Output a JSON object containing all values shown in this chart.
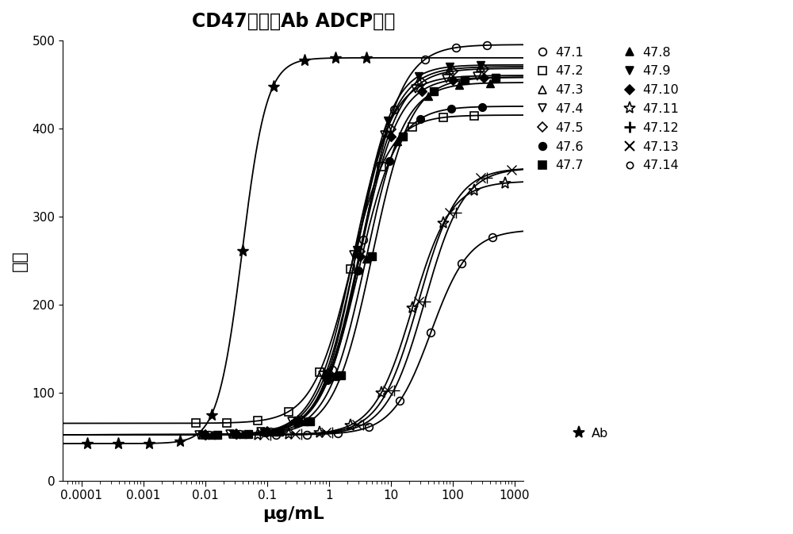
{
  "title": "CD47可活化Ab ADCP测定",
  "xlabel": "μg/mL",
  "ylabel": "发光",
  "ylim": [
    0,
    500
  ],
  "yticks": [
    0,
    100,
    200,
    300,
    400,
    500
  ],
  "xticks": [
    0.0001,
    0.001,
    0.01,
    0.1,
    1,
    10,
    100,
    1000
  ],
  "xtick_labels": [
    "0.0001",
    "0.001",
    "0.01",
    "0.1",
    "1",
    "10",
    "100",
    "1000"
  ],
  "series": [
    {
      "label": "47.1",
      "marker": "o",
      "fillstyle": "none",
      "ec50_log": 0.55,
      "bottom": 52,
      "top": 495,
      "hill": 1.4
    },
    {
      "label": "47.2",
      "marker": "s",
      "fillstyle": "none",
      "ec50_log": 0.35,
      "bottom": 65,
      "top": 415,
      "hill": 1.4
    },
    {
      "label": "47.3",
      "marker": "^",
      "fillstyle": "none",
      "ec50_log": 0.45,
      "bottom": 52,
      "top": 470,
      "hill": 1.4
    },
    {
      "label": "47.4",
      "marker": "v",
      "fillstyle": "none",
      "ec50_log": 0.4,
      "bottom": 52,
      "top": 460,
      "hill": 1.4
    },
    {
      "label": "47.5",
      "marker": "D",
      "fillstyle": "none",
      "ec50_log": 0.5,
      "bottom": 52,
      "top": 468,
      "hill": 1.4
    },
    {
      "label": "47.6",
      "marker": "o",
      "fillstyle": "full",
      "ec50_log": 0.48,
      "bottom": 52,
      "top": 425,
      "hill": 1.4
    },
    {
      "label": "47.7",
      "marker": "s",
      "fillstyle": "full",
      "ec50_log": 0.7,
      "bottom": 52,
      "top": 458,
      "hill": 1.4
    },
    {
      "label": "47.8",
      "marker": "^",
      "fillstyle": "full",
      "ec50_log": 0.6,
      "bottom": 52,
      "top": 452,
      "hill": 1.4
    },
    {
      "label": "47.9",
      "marker": "v",
      "fillstyle": "full",
      "ec50_log": 0.45,
      "bottom": 52,
      "top": 472,
      "hill": 1.5
    },
    {
      "label": "47.10",
      "marker": "D",
      "fillstyle": "full",
      "ec50_log": 0.5,
      "bottom": 52,
      "top": 458,
      "hill": 1.4
    },
    {
      "label": "47.11",
      "marker": "o",
      "fillstyle": "none",
      "ec50_log": 1.35,
      "bottom": 52,
      "top": 340,
      "hill": 1.4,
      "star_open": true
    },
    {
      "label": "47.12",
      "marker": "+",
      "fillstyle": "full",
      "ec50_log": 1.55,
      "bottom": 52,
      "top": 355,
      "hill": 1.4
    },
    {
      "label": "47.13",
      "marker": "x",
      "fillstyle": "full",
      "ec50_log": 1.45,
      "bottom": 52,
      "top": 355,
      "hill": 1.4
    },
    {
      "label": "47.14",
      "marker": "o",
      "fillstyle": "none",
      "ec50_log": 1.65,
      "bottom": 52,
      "top": 285,
      "hill": 1.4,
      "linestyle": "solid"
    },
    {
      "label": "Ab",
      "marker": "*",
      "fillstyle": "full",
      "ec50_log": -1.4,
      "bottom": 42,
      "top": 480,
      "hill": 2.2
    }
  ],
  "legend_left": [
    {
      "label": "47.1",
      "marker": "o",
      "fillstyle": "none"
    },
    {
      "label": "47.2",
      "marker": "s",
      "fillstyle": "none"
    },
    {
      "label": "47.3",
      "marker": "^",
      "fillstyle": "none"
    },
    {
      "label": "47.4",
      "marker": "v",
      "fillstyle": "none"
    },
    {
      "label": "47.5",
      "marker": "D",
      "fillstyle": "none"
    },
    {
      "label": "47.6",
      "marker": "o",
      "fillstyle": "full"
    },
    {
      "label": "47.7",
      "marker": "s",
      "fillstyle": "full"
    }
  ],
  "legend_right": [
    {
      "label": "47.8",
      "marker": "^",
      "fillstyle": "full"
    },
    {
      "label": "47.9",
      "marker": "v",
      "fillstyle": "full"
    },
    {
      "label": "47.10",
      "marker": "D",
      "fillstyle": "full"
    },
    {
      "label": "47.11",
      "marker": "*",
      "fillstyle": "none"
    },
    {
      "label": "47.12",
      "marker": "+",
      "fillstyle": "full"
    },
    {
      "label": "47.13",
      "marker": "x",
      "fillstyle": "full"
    },
    {
      "label": "47.14",
      "marker": "o",
      "fillstyle": "none",
      "small": true
    }
  ],
  "legend_ab": {
    "label": "Ab",
    "marker": "*",
    "fillstyle": "full"
  },
  "background_color": "#ffffff",
  "title_fontsize": 15,
  "label_fontsize": 13,
  "tick_fontsize": 11
}
